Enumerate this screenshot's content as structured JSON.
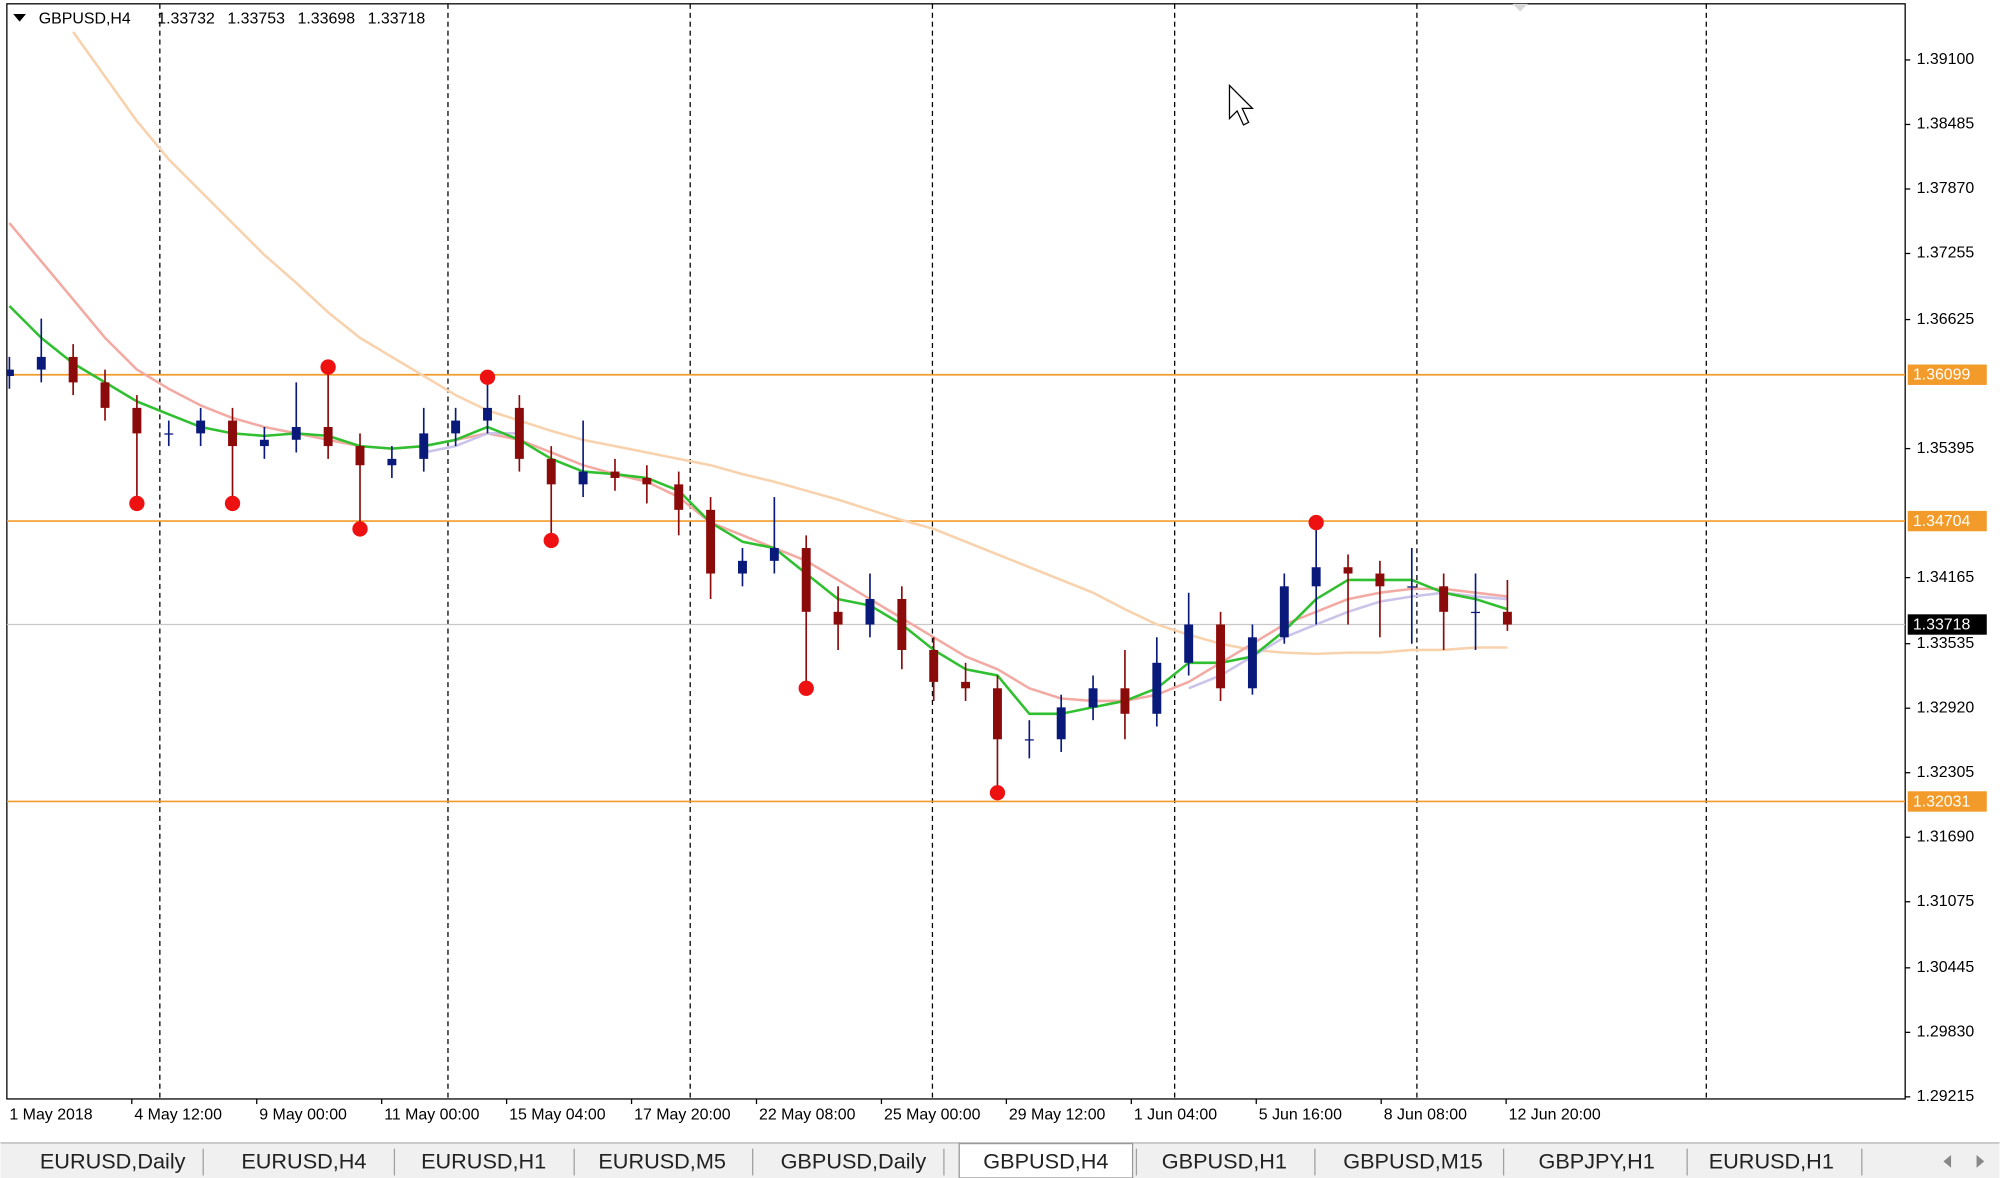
{
  "chart_data": {
    "type": "candlestick",
    "title": "GBPUSD,H4",
    "quote": [
      "1.33732",
      "1.33753",
      "1.33698",
      "1.33718"
    ],
    "x_labels": [
      "1 May 2018",
      "4 May 12:00",
      "9 May 00:00",
      "11 May 00:00",
      "15 May 04:00",
      "17 May 20:00",
      "22 May 08:00",
      "25 May 00:00",
      "29 May 12:00",
      "1 Jun 04:00",
      "5 Jun 16:00",
      "8 Jun 08:00",
      "12 Jun 20:00"
    ],
    "ylim": [
      1.29195,
      1.39635
    ],
    "yticks": [
      {
        "value": 1.391,
        "label": "1.39100"
      },
      {
        "value": 1.38485,
        "label": "1.38485"
      },
      {
        "value": 1.3787,
        "label": "1.37870"
      },
      {
        "value": 1.37255,
        "label": "1.37255"
      },
      {
        "value": 1.36625,
        "label": "1.36625"
      },
      {
        "value": 1.35395,
        "label": "1.35395"
      },
      {
        "value": 1.34165,
        "label": "1.34165"
      },
      {
        "value": 1.33535,
        "label": "1.33535"
      },
      {
        "value": 1.3292,
        "label": "1.32920"
      },
      {
        "value": 1.32305,
        "label": "1.32305"
      },
      {
        "value": 1.3169,
        "label": "1.31690"
      },
      {
        "value": 1.31075,
        "label": "1.31075"
      },
      {
        "value": 1.30445,
        "label": "1.30445"
      },
      {
        "value": 1.2983,
        "label": "1.29830"
      },
      {
        "value": 1.29215,
        "label": "1.29215"
      }
    ],
    "up_color": "#0a1a7a",
    "down_color": "#8b0a0a",
    "open": [
      1.36087,
      1.36148,
      1.36269,
      1.36026,
      1.35783,
      1.3554,
      1.3554,
      1.35662,
      1.35419,
      1.35479,
      1.35601,
      1.35419,
      1.35236,
      1.35297,
      1.3554,
      1.35662,
      1.35783,
      1.35297,
      1.35054,
      1.35176,
      1.35115,
      1.35054,
      1.34811,
      1.34204,
      1.34325,
      1.34447,
      1.33839,
      1.33718,
      1.33961,
      1.33475,
      1.33171,
      1.3311,
      1.32624,
      1.32624,
      1.32928,
      1.3311,
      1.32867,
      1.33353,
      1.33718,
      1.3311,
      1.33596,
      1.34082,
      1.34264,
      1.34204,
      1.34082,
      1.34082,
      1.33839,
      1.33839
    ],
    "high": [
      1.36269,
      1.36634,
      1.36391,
      1.36148,
      1.35905,
      1.35662,
      1.35783,
      1.35783,
      1.35601,
      1.36026,
      1.36172,
      1.3554,
      1.35419,
      1.35783,
      1.35783,
      1.36075,
      1.35905,
      1.35419,
      1.35662,
      1.35297,
      1.35236,
      1.35176,
      1.34933,
      1.34447,
      1.34933,
      1.34568,
      1.34082,
      1.34204,
      1.34082,
      1.33596,
      1.33353,
      1.33232,
      1.32806,
      1.33049,
      1.33232,
      1.33475,
      1.33596,
      1.34021,
      1.33839,
      1.33718,
      1.34204,
      1.3469,
      1.34386,
      1.34325,
      1.34447,
      1.34204,
      1.34204,
      1.34143
    ],
    "low": [
      1.35965,
      1.36026,
      1.35905,
      1.35662,
      1.34872,
      1.35419,
      1.35419,
      1.34872,
      1.35297,
      1.35358,
      1.35297,
      1.34629,
      1.35115,
      1.35176,
      1.35419,
      1.3554,
      1.35176,
      1.34519,
      1.34933,
      1.34993,
      1.34872,
      1.34568,
      1.33961,
      1.34082,
      1.34204,
      1.3311,
      1.33475,
      1.33596,
      1.33292,
      1.32989,
      1.32989,
      1.32114,
      1.32442,
      1.32503,
      1.32806,
      1.32624,
      1.32746,
      1.33232,
      1.32989,
      1.33049,
      1.33535,
      1.33718,
      1.33718,
      1.33596,
      1.33535,
      1.33475,
      1.33475,
      1.33657
    ],
    "close": [
      1.36148,
      1.36269,
      1.36026,
      1.35783,
      1.3554,
      1.3554,
      1.35662,
      1.35419,
      1.35479,
      1.35601,
      1.35419,
      1.35236,
      1.35297,
      1.3554,
      1.35662,
      1.35783,
      1.35297,
      1.35054,
      1.35176,
      1.35115,
      1.35054,
      1.34811,
      1.34204,
      1.34325,
      1.34447,
      1.33839,
      1.33718,
      1.33961,
      1.33475,
      1.33171,
      1.3311,
      1.32624,
      1.32624,
      1.32928,
      1.3311,
      1.32867,
      1.33353,
      1.33718,
      1.3311,
      1.33596,
      1.34082,
      1.34264,
      1.34204,
      1.34082,
      1.34082,
      1.33839,
      1.33839,
      1.33718
    ],
    "series": [
      {
        "color": "#f8d2ad",
        "values": [
          null,
          null,
          1.39367,
          1.38942,
          1.38517,
          1.38152,
          1.37849,
          1.37545,
          1.37241,
          1.36974,
          1.36694,
          1.36451,
          1.36269,
          1.36087,
          1.35905,
          1.35759,
          1.35662,
          1.35564,
          1.35479,
          1.35419,
          1.35358,
          1.35297,
          1.35236,
          1.35151,
          1.35078,
          1.34993,
          1.34908,
          1.34811,
          1.34714,
          1.34629,
          1.34507,
          1.34386,
          1.34264,
          1.34143,
          1.34021,
          1.33863,
          1.33718,
          1.3362,
          1.33535,
          1.33475,
          1.3345,
          1.33438,
          1.3345,
          1.3345,
          1.33475,
          1.33475,
          1.33499,
          1.33499
        ]
      },
      {
        "color": "#f2aaa2",
        "values": [
          1.37545,
          1.3718,
          1.36816,
          1.36451,
          1.36148,
          1.35965,
          1.35807,
          1.35686,
          1.35601,
          1.3554,
          1.35479,
          1.35419,
          1.35394,
          1.35419,
          1.35479,
          1.3554,
          1.35479,
          1.35358,
          1.35236,
          1.35151,
          1.35078,
          1.34933,
          1.3469,
          1.34568,
          1.34447,
          1.34325,
          1.34143,
          1.33961,
          1.33778,
          1.33596,
          1.33414,
          1.33292,
          1.3311,
          1.33013,
          1.32989,
          1.32989,
          1.33049,
          1.33171,
          1.33353,
          1.33535,
          1.33718,
          1.33839,
          1.33961,
          1.34021,
          1.34058,
          1.34058,
          1.34021,
          1.33985
        ]
      },
      {
        "color": "#cbc3ea",
        "values": [
          null,
          null,
          null,
          null,
          null,
          null,
          null,
          null,
          null,
          null,
          null,
          null,
          null,
          1.35358,
          1.35419,
          1.3554,
          1.3554,
          null,
          null,
          null,
          null,
          null,
          null,
          null,
          null,
          null,
          null,
          null,
          null,
          null,
          null,
          null,
          null,
          null,
          null,
          null,
          null,
          1.3311,
          1.33232,
          1.33414,
          1.33596,
          1.33718,
          1.33839,
          1.33936,
          1.33985,
          1.34021,
          1.33985,
          1.33961
        ]
      },
      {
        "color": "#2fbf2f",
        "values": [
          1.36755,
          1.36451,
          1.36208,
          1.36026,
          1.35844,
          1.35722,
          1.35601,
          1.3554,
          1.35516,
          1.3554,
          1.35516,
          1.35419,
          1.35394,
          1.35419,
          1.35479,
          1.35601,
          1.35479,
          1.35297,
          1.35176,
          1.35151,
          1.35115,
          1.34993,
          1.3469,
          1.34507,
          1.34447,
          1.34204,
          1.33961,
          1.339,
          1.33718,
          1.33475,
          1.33292,
          1.33232,
          1.32867,
          1.32867,
          1.32928,
          1.32989,
          1.3311,
          1.33353,
          1.33353,
          1.33414,
          1.33657,
          1.33961,
          1.34143,
          1.34143,
          1.34143,
          1.34021,
          1.33961,
          1.33863
        ]
      }
    ],
    "points": {
      "color": "#ee1111",
      "x": [
        4,
        7,
        10,
        11,
        15,
        17,
        25,
        31,
        41
      ],
      "values": [
        1.34872,
        1.34872,
        1.36172,
        1.34629,
        1.36075,
        1.34519,
        1.3311,
        1.32114,
        1.3469
      ]
    },
    "levels": [
      {
        "value": 1.36099,
        "label": "1.36099"
      },
      {
        "value": 1.34704,
        "label": "1.34704"
      },
      {
        "value": 1.32031,
        "label": "1.32031"
      }
    ],
    "level_color": "#f29b2b",
    "current_price": {
      "value": 1.33718,
      "label": "1.33718"
    }
  },
  "tabs": [
    "EURUSD,Daily",
    "EURUSD,H4",
    "EURUSD,H1",
    "EURUSD,M5",
    "GBPUSD,Daily",
    "GBPUSD,H4",
    "GBPUSD,H1",
    "GBPUSD,M15",
    "GBPJPY,H1",
    "EURUSD,H1"
  ],
  "active_tab": 5
}
